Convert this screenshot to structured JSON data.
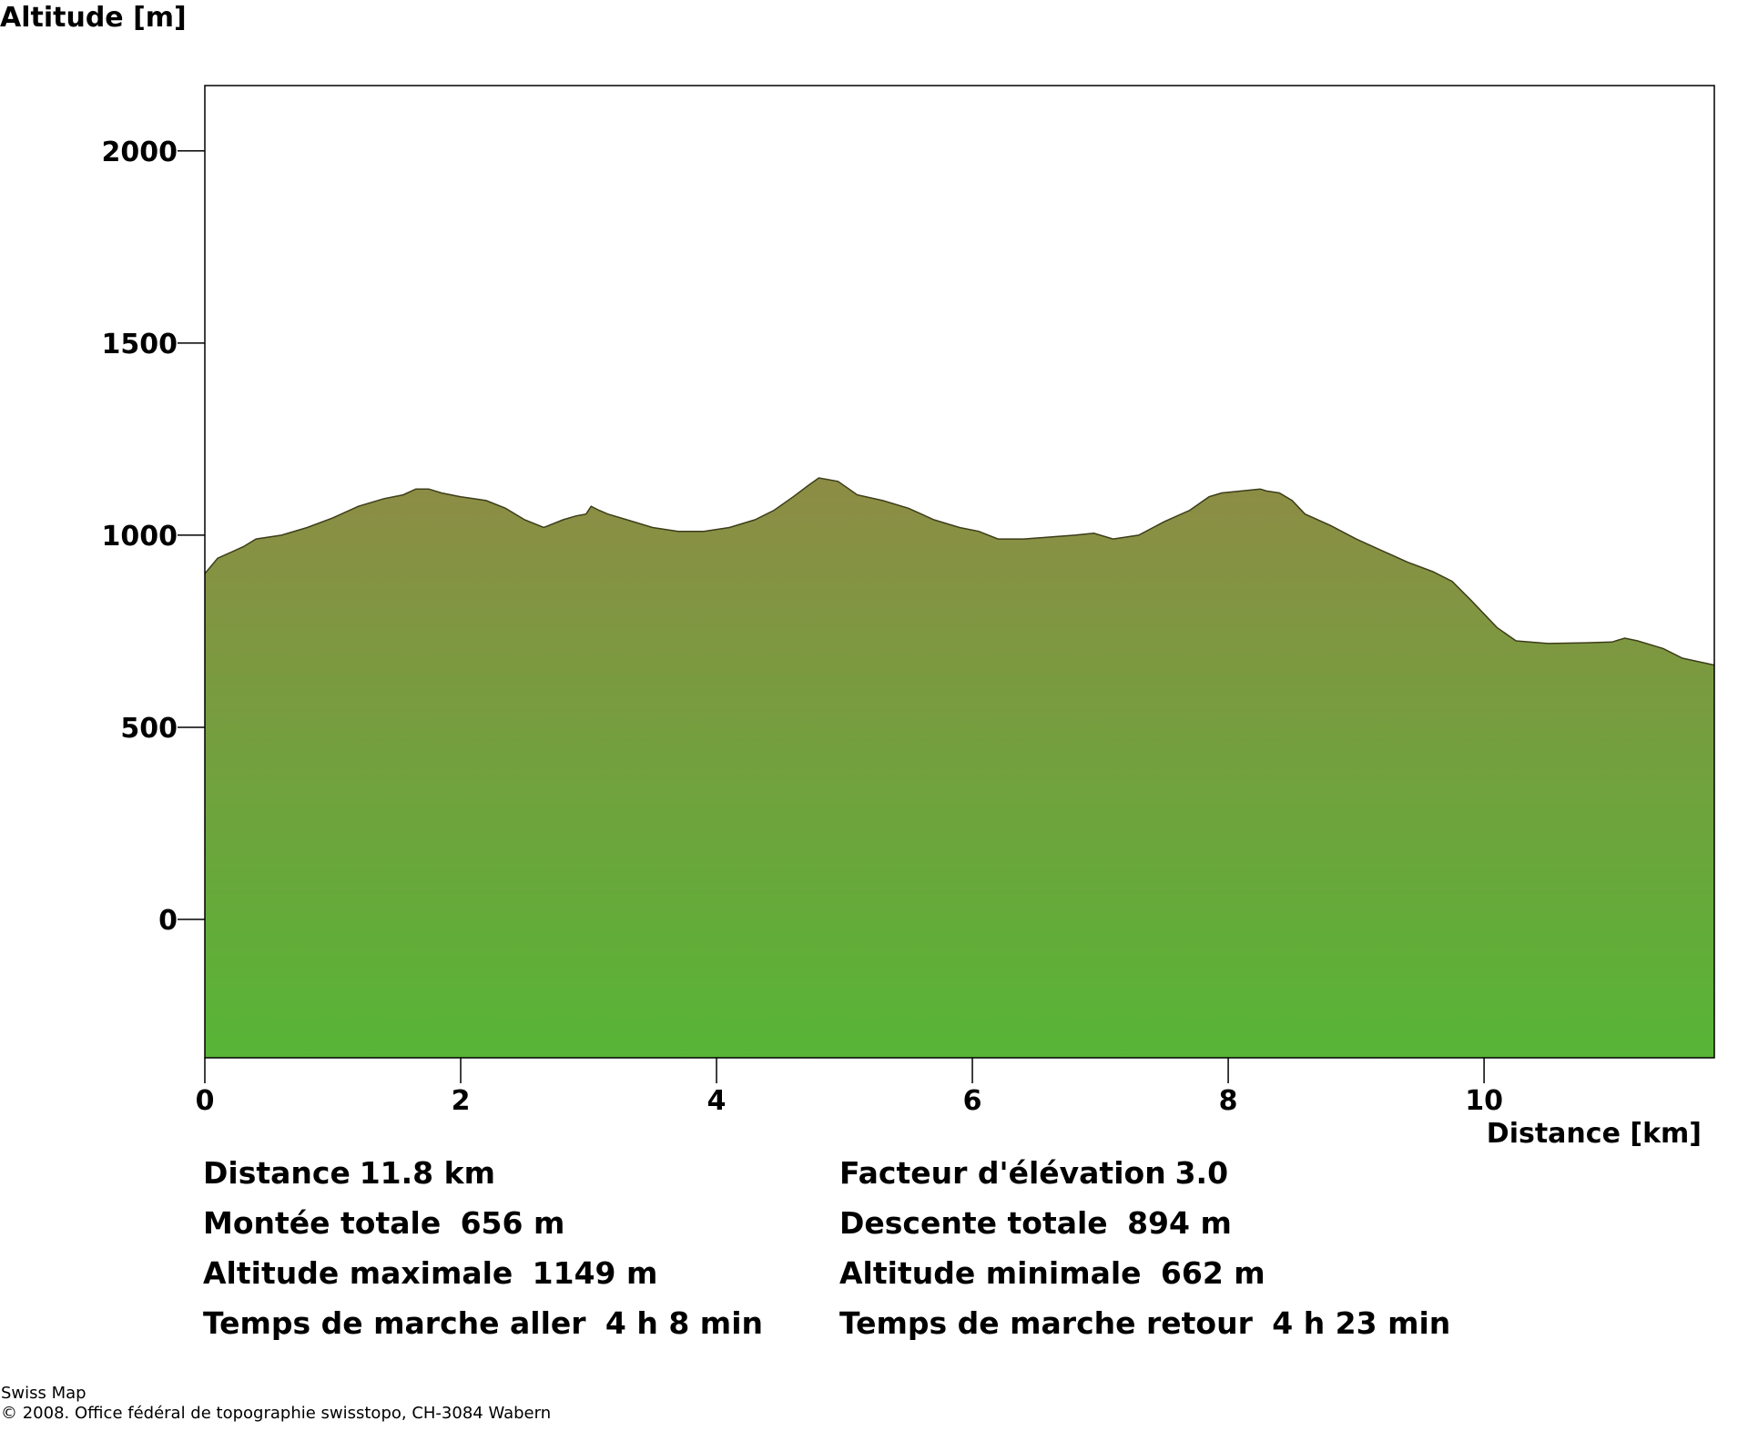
{
  "chart_data": {
    "type": "area",
    "ylabel": "Altitude [m]",
    "xlabel": "Distance [km]",
    "xlim": [
      0,
      11.8
    ],
    "ylim": [
      -360,
      2170
    ],
    "xticks": [
      0,
      2,
      4,
      6,
      8,
      10
    ],
    "yticks": [
      0,
      500,
      1000,
      1500,
      2000
    ],
    "grid": false,
    "legend": "none",
    "fill_colors": {
      "top": "#8d8c45",
      "bottom": "#57b536"
    },
    "outline_color": "#3d3d1a",
    "x": [
      0,
      0.1,
      0.3,
      0.4,
      0.6,
      0.8,
      1.0,
      1.2,
      1.4,
      1.55,
      1.65,
      1.75,
      1.85,
      2.0,
      2.1,
      2.2,
      2.35,
      2.5,
      2.65,
      2.8,
      2.9,
      2.98,
      3.02,
      3.08,
      3.15,
      3.3,
      3.5,
      3.7,
      3.9,
      4.1,
      4.3,
      4.45,
      4.6,
      4.72,
      4.8,
      4.95,
      5.1,
      5.3,
      5.5,
      5.7,
      5.9,
      6.05,
      6.2,
      6.4,
      6.6,
      6.8,
      6.95,
      7.1,
      7.3,
      7.5,
      7.7,
      7.85,
      7.95,
      8.1,
      8.25,
      8.3,
      8.4,
      8.5,
      8.6,
      8.8,
      9.0,
      9.2,
      9.4,
      9.6,
      9.75,
      9.9,
      10.1,
      10.25,
      10.5,
      10.8,
      11.0,
      11.1,
      11.2,
      11.4,
      11.55,
      11.8
    ],
    "y": [
      900,
      940,
      970,
      990,
      1000,
      1020,
      1045,
      1075,
      1095,
      1105,
      1120,
      1120,
      1110,
      1100,
      1095,
      1090,
      1070,
      1040,
      1020,
      1040,
      1050,
      1055,
      1075,
      1065,
      1055,
      1040,
      1020,
      1010,
      1010,
      1020,
      1040,
      1065,
      1100,
      1130,
      1149,
      1140,
      1105,
      1090,
      1070,
      1040,
      1020,
      1010,
      990,
      990,
      995,
      1000,
      1005,
      990,
      1000,
      1035,
      1065,
      1100,
      1110,
      1115,
      1120,
      1115,
      1110,
      1090,
      1055,
      1025,
      990,
      960,
      930,
      905,
      880,
      830,
      760,
      725,
      718,
      720,
      722,
      732,
      725,
      705,
      680,
      662
    ]
  },
  "stats": {
    "left": [
      {
        "label": "Distance",
        "value": "11.8 km"
      },
      {
        "label": "Montée totale",
        "value": " 656 m"
      },
      {
        "label": "Altitude maximale",
        "value": " 1149 m"
      },
      {
        "label": "Temps de marche aller",
        "value": " 4 h 8 min"
      }
    ],
    "right": [
      {
        "label": "Facteur d'élévation",
        "value": "3.0"
      },
      {
        "label": "Descente totale",
        "value": " 894 m"
      },
      {
        "label": "Altitude minimale",
        "value": " 662 m"
      },
      {
        "label": "Temps de marche retour",
        "value": " 4 h 23 min"
      }
    ]
  },
  "footer": {
    "line1": "Swiss Map",
    "line2": "© 2008. Office fédéral de topographie swisstopo, CH-3084 Wabern"
  }
}
